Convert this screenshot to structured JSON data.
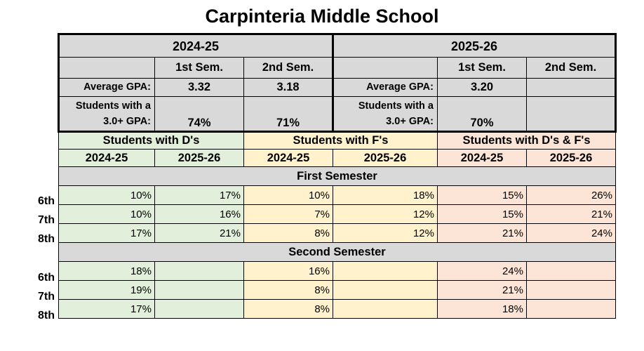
{
  "title": "Carpinteria Middle School",
  "summary": {
    "year1": "2024-25",
    "year2": "2025-26",
    "sem1": "1st Sem.",
    "sem2": "2nd Sem.",
    "avg_gpa_label": "Average GPA:",
    "gpa30_label_line1": "Students with a",
    "gpa30_label_line2": "3.0+ GPA:",
    "y1_avg_s1": "3.32",
    "y1_avg_s2": "3.18",
    "y2_avg_s1": "3.20",
    "y2_avg_s2": "",
    "y1_gpa30_s1": "74%",
    "y1_gpa30_s2": "71%",
    "y2_gpa30_s1": "70%",
    "y2_gpa30_s2": ""
  },
  "groups": {
    "ds": "Students with D's",
    "fs": "Students with F's",
    "dfs": "Students with D's & F's",
    "y1": "2024-25",
    "y2": "2025-26"
  },
  "first_semester": {
    "label": "First Semester",
    "rows": [
      {
        "grade": "6th",
        "d1": "10%",
        "d2": "17%",
        "f1": "10%",
        "f2": "18%",
        "df1": "15%",
        "df2": "26%"
      },
      {
        "grade": "7th",
        "d1": "10%",
        "d2": "16%",
        "f1": "7%",
        "f2": "12%",
        "df1": "15%",
        "df2": "21%"
      },
      {
        "grade": "8th",
        "d1": "17%",
        "d2": "21%",
        "f1": "8%",
        "f2": "12%",
        "df1": "21%",
        "df2": "24%"
      }
    ]
  },
  "second_semester": {
    "label": "Second Semester",
    "rows": [
      {
        "grade": "6th",
        "d1": "18%",
        "d2": "",
        "f1": "16%",
        "f2": "",
        "df1": "24%",
        "df2": ""
      },
      {
        "grade": "7th",
        "d1": "19%",
        "d2": "",
        "f1": "8%",
        "f2": "",
        "df1": "21%",
        "df2": ""
      },
      {
        "grade": "8th",
        "d1": "17%",
        "d2": "",
        "f1": "8%",
        "f2": "",
        "df1": "18%",
        "df2": ""
      }
    ]
  },
  "colors": {
    "header_gray": "#d9d9d9",
    "d_green": "#e2efda",
    "f_yellow": "#fff2cc",
    "df_pink": "#fce4d6"
  }
}
